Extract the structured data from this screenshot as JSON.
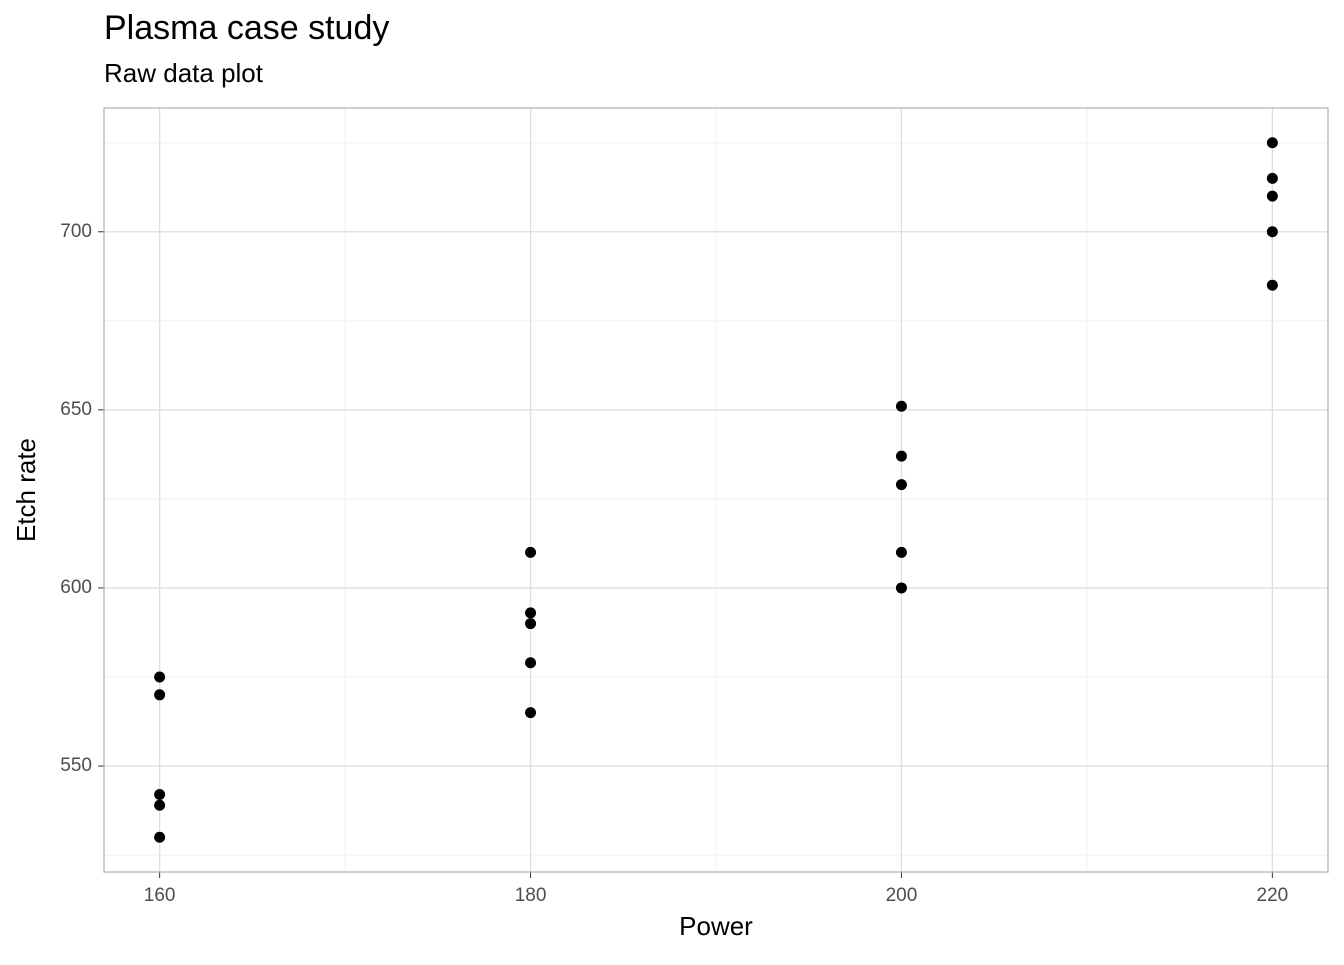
{
  "chart_data": {
    "type": "scatter",
    "title": "Plasma case study",
    "subtitle": "Raw data plot",
    "x_label": "Power",
    "y_label": "Etch rate",
    "x": [
      160,
      160,
      160,
      160,
      160,
      180,
      180,
      180,
      180,
      180,
      200,
      200,
      200,
      200,
      200,
      220,
      220,
      220,
      220,
      220
    ],
    "values": [
      575,
      542,
      530,
      539,
      570,
      565,
      593,
      590,
      579,
      610,
      600,
      651,
      610,
      637,
      629,
      725,
      700,
      715,
      685,
      710
    ],
    "color": "#000000",
    "xlim": [
      157,
      223
    ],
    "xticks": [
      160,
      180,
      200,
      220
    ],
    "xminor": [
      170,
      190,
      210
    ],
    "ylim": [
      520.25,
      734.75
    ],
    "yticks": [
      550,
      600,
      650,
      700
    ],
    "yminor": [
      525,
      575,
      625,
      675,
      725
    ],
    "grid": true
  }
}
